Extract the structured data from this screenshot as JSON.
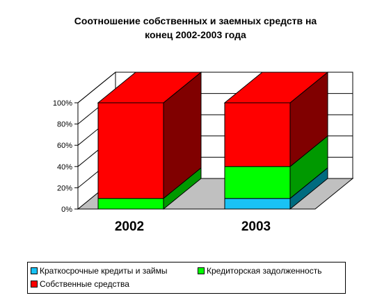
{
  "chart_data": {
    "type": "bar",
    "stacked": "100%",
    "three_d": true,
    "title": "Соотношение собственных и заемных средств  на\nконец 2002-2003 года",
    "categories": [
      "2002",
      "2003"
    ],
    "series": [
      {
        "name": "Краткосрочные кредиты и займы",
        "values": [
          0,
          10
        ],
        "color": "#19C2F5",
        "side_color": "#006B7F"
      },
      {
        "name": "Кредиторская задолженность",
        "values": [
          10,
          30
        ],
        "color": "#00FF00",
        "side_color": "#009900"
      },
      {
        "name": "Собственные средства",
        "values": [
          90,
          60
        ],
        "color": "#FF0000",
        "side_color": "#800000"
      }
    ],
    "y_ticks": [
      "0%",
      "20%",
      "40%",
      "60%",
      "80%",
      "100%"
    ],
    "ylim": [
      0,
      100
    ],
    "grid": true,
    "legend_position": "bottom",
    "colors": {
      "floor": "#C0C0C0",
      "gridline": "#000000"
    }
  }
}
